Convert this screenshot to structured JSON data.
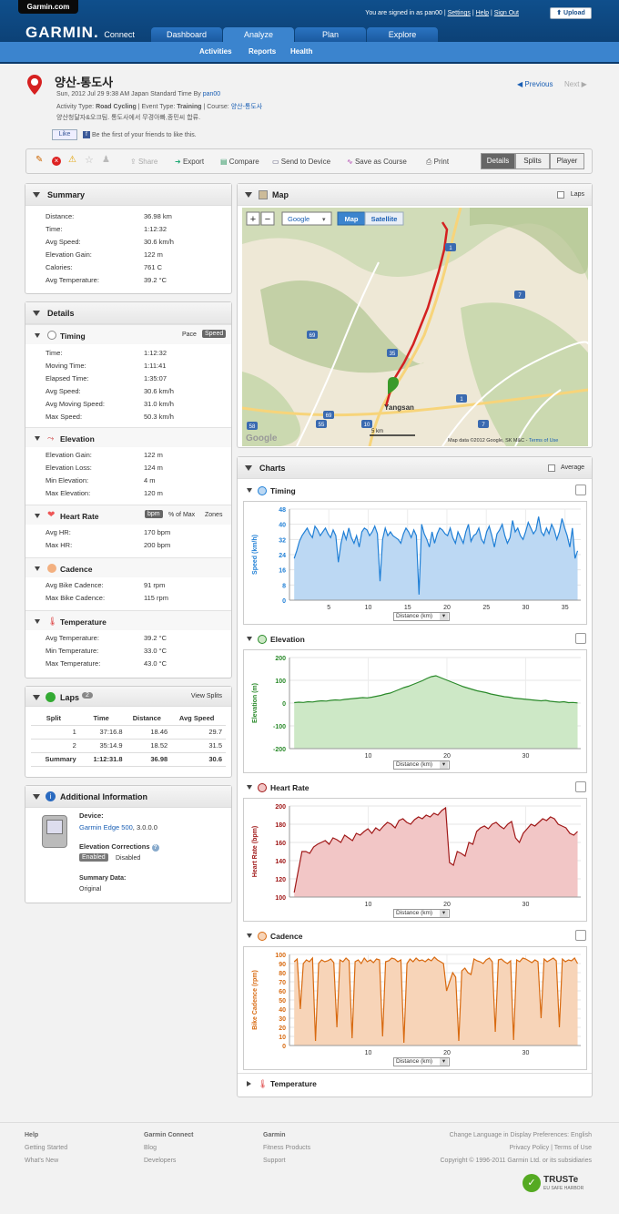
{
  "header": {
    "site_link": "Garmin.com",
    "signed_in": "You are signed in as pan00",
    "links": [
      "Settings",
      "Help",
      "Sign Out"
    ],
    "upload": "Upload",
    "logo": "GARMIN.",
    "logo_sub": "Connect",
    "tabs": [
      "Dashboard",
      "Analyze",
      "Plan",
      "Explore"
    ],
    "active_tab": "Analyze",
    "subnav": [
      "Activities",
      "Reports",
      "Health"
    ]
  },
  "activity": {
    "title": "양산-통도사",
    "line1_prefix": "Sun, 2012 Jul 29 9:38 AM Japan Standard Time By ",
    "line1_user": "pan00",
    "line2_a": "Activity Type: ",
    "line2_type": "Road Cycling",
    "line2_b": " | Event Type: ",
    "line2_event": "Training",
    "line2_c": " | Course: ",
    "line2_course": "양산-통도사",
    "desc": "양산청달자&오크팀. 통도사에서 무경아빠,종민씨 합류.",
    "like": "Like",
    "like_text": "Be the first of your friends to like this.",
    "prev": "Previous",
    "next": "Next"
  },
  "toolbar": {
    "share": "Share",
    "export": "Export",
    "compare": "Compare",
    "send": "Send to Device",
    "save_course": "Save as Course",
    "print": "Print",
    "views": [
      "Details",
      "Splits",
      "Player"
    ],
    "active_view": "Details"
  },
  "summary": {
    "title": "Summary",
    "rows": [
      [
        "Distance:",
        "36.98 km"
      ],
      [
        "Time:",
        "1:12:32"
      ],
      [
        "Avg Speed:",
        "30.6 km/h"
      ],
      [
        "Elevation Gain:",
        "122 m"
      ],
      [
        "Calories:",
        "761 C"
      ],
      [
        "Avg Temperature:",
        "39.2 °C"
      ]
    ]
  },
  "details": {
    "title": "Details",
    "timing": {
      "title": "Timing",
      "pace": "Pace",
      "speed": "Speed",
      "rows": [
        [
          "Time:",
          "1:12:32"
        ],
        [
          "Moving Time:",
          "1:11:41"
        ],
        [
          "Elapsed Time:",
          "1:35:07"
        ],
        [
          "Avg Speed:",
          "30.6 km/h"
        ],
        [
          "Avg Moving Speed:",
          "31.0 km/h"
        ],
        [
          "Max Speed:",
          "50.3 km/h"
        ]
      ]
    },
    "elevation": {
      "title": "Elevation",
      "rows": [
        [
          "Elevation Gain:",
          "122 m"
        ],
        [
          "Elevation Loss:",
          "124 m"
        ],
        [
          "Min Elevation:",
          "4 m"
        ],
        [
          "Max Elevation:",
          "120 m"
        ]
      ]
    },
    "heart": {
      "title": "Heart Rate",
      "bpm": "bpm",
      "pct": "% of Max",
      "zones": "Zones",
      "rows": [
        [
          "Avg HR:",
          "170 bpm"
        ],
        [
          "Max HR:",
          "200 bpm"
        ]
      ]
    },
    "cadence": {
      "title": "Cadence",
      "rows": [
        [
          "Avg Bike Cadence:",
          "91 rpm"
        ],
        [
          "Max Bike Cadence:",
          "115 rpm"
        ]
      ]
    },
    "temperature": {
      "title": "Temperature",
      "rows": [
        [
          "Avg Temperature:",
          "39.2 °C"
        ],
        [
          "Min Temperature:",
          "33.0 °C"
        ],
        [
          "Max Temperature:",
          "43.0 °C"
        ]
      ]
    }
  },
  "laps": {
    "title": "Laps",
    "count": "2",
    "view_splits": "View Splits",
    "headers": [
      "Split",
      "Time",
      "Distance",
      "Avg Speed"
    ],
    "rows": [
      [
        "1",
        "37:16.8",
        "18.46",
        "29.7"
      ],
      [
        "2",
        "35:14.9",
        "18.52",
        "31.5"
      ],
      [
        "Summary",
        "1:12:31.8",
        "36.98",
        "30.6"
      ]
    ]
  },
  "info": {
    "title": "Additional Information",
    "device_label": "Device:",
    "device": "Garmin Edge 500",
    "device_ver": ", 3.0.0.0",
    "elev_corr": "Elevation Corrections",
    "enabled": "Enabled",
    "disabled": "Disabled",
    "summary_label": "Summary Data:",
    "summary_val": "Original"
  },
  "map": {
    "title": "Map",
    "laps": "Laps",
    "google": "Google",
    "map_btn": "Map",
    "sat_btn": "Satellite",
    "city": "Yangsan",
    "credit": "Map data ©2012 Google, SK M&C - ",
    "terms": "Terms of Use",
    "scale": "5 km",
    "road_labels": [
      "1",
      "69",
      "69",
      "35",
      "7",
      "7",
      "1",
      "58",
      "55",
      "10"
    ]
  },
  "charts": {
    "title": "Charts",
    "average": "Average",
    "distance_label": "Distance (km)",
    "temperature": "Temperature"
  },
  "chart_data": [
    {
      "type": "area",
      "name": "Timing",
      "ylabel": "Speed (km/h)",
      "xlabel": "Distance (km)",
      "xlim": [
        0,
        37
      ],
      "ylim": [
        0,
        48
      ],
      "yticks": [
        0,
        8,
        16,
        24,
        32,
        40,
        48
      ],
      "xticks": [
        5,
        10,
        15,
        20,
        25,
        30,
        35
      ],
      "color": "#1f7fd6",
      "fill": "#bcd8f3",
      "y": [
        22,
        26,
        31,
        34,
        36,
        38,
        35,
        33,
        39,
        37,
        34,
        36,
        38,
        35,
        33,
        37,
        34,
        20,
        30,
        36,
        32,
        38,
        33,
        30,
        34,
        28,
        36,
        38,
        37,
        34,
        36,
        39,
        35,
        10,
        32,
        38,
        34,
        36,
        34,
        33,
        32,
        30,
        35,
        38,
        36,
        33,
        37,
        34,
        3,
        40,
        35,
        32,
        28,
        36,
        30,
        35,
        38,
        37,
        35,
        34,
        38,
        33,
        30,
        36,
        33,
        30,
        36,
        40,
        31,
        34,
        35,
        38,
        32,
        30,
        36,
        39,
        34,
        28,
        35,
        37,
        40,
        34,
        30,
        33,
        42,
        36,
        38,
        34,
        32,
        36,
        41,
        38,
        35,
        37,
        44,
        36,
        34,
        38,
        35,
        40,
        37,
        32,
        36,
        43,
        38,
        34,
        28,
        38,
        22,
        26
      ]
    },
    {
      "type": "area",
      "name": "Elevation",
      "ylabel": "Elevation (m)",
      "xlabel": "Distance (km)",
      "xlim": [
        0,
        37
      ],
      "ylim": [
        -200,
        200
      ],
      "yticks": [
        -200,
        -100,
        0,
        100,
        200
      ],
      "xticks": [
        10,
        20,
        30
      ],
      "color": "#2a8a2a",
      "fill": "#cde8c6",
      "y": [
        2,
        4,
        3,
        6,
        5,
        8,
        10,
        9,
        12,
        14,
        13,
        16,
        18,
        20,
        22,
        24,
        23,
        26,
        30,
        34,
        40,
        44,
        52,
        60,
        68,
        74,
        82,
        90,
        98,
        108,
        116,
        120,
        112,
        104,
        96,
        88,
        80,
        72,
        66,
        60,
        54,
        50,
        46,
        40,
        36,
        32,
        28,
        26,
        22,
        20,
        18,
        16,
        14,
        12,
        10,
        12,
        8,
        6,
        4,
        6,
        2,
        3,
        1
      ]
    },
    {
      "type": "area",
      "name": "Heart Rate",
      "ylabel": "Heart Rate (bpm)",
      "xlabel": "Distance (km)",
      "xlim": [
        0,
        37
      ],
      "ylim": [
        100,
        200
      ],
      "yticks": [
        100,
        120,
        140,
        160,
        180,
        200
      ],
      "xticks": [
        10,
        20,
        30
      ],
      "color": "#a01818",
      "fill": "#f2c6c6",
      "y": [
        105,
        128,
        150,
        150,
        148,
        155,
        158,
        160,
        162,
        158,
        165,
        163,
        160,
        168,
        165,
        162,
        170,
        168,
        172,
        175,
        170,
        176,
        173,
        178,
        182,
        180,
        176,
        184,
        186,
        182,
        180,
        185,
        188,
        186,
        190,
        188,
        192,
        190,
        195,
        198,
        138,
        135,
        150,
        148,
        145,
        160,
        158,
        172,
        176,
        178,
        175,
        180,
        182,
        178,
        175,
        180,
        183,
        165,
        160,
        170,
        175,
        180,
        178,
        182,
        186,
        184,
        188,
        186,
        180,
        178,
        176,
        170,
        168,
        172
      ]
    },
    {
      "type": "area",
      "name": "Cadence",
      "ylabel": "Bike Cadence (rpm)",
      "xlabel": "Distance (km)",
      "xlim": [
        0,
        37
      ],
      "ylim": [
        0,
        100
      ],
      "yticks": [
        0,
        10,
        20,
        30,
        40,
        50,
        60,
        70,
        80,
        90,
        100
      ],
      "xticks": [
        10,
        20,
        30
      ],
      "color": "#d86a10",
      "fill": "#f7d4b8",
      "y": [
        92,
        95,
        40,
        90,
        94,
        92,
        96,
        5,
        90,
        94,
        92,
        93,
        95,
        91,
        20,
        94,
        92,
        96,
        93,
        8,
        92,
        94,
        90,
        96,
        92,
        94,
        91,
        95,
        94,
        10,
        92,
        93,
        96,
        95,
        92,
        94,
        3,
        90,
        95,
        92,
        96,
        93,
        94,
        92,
        95,
        93,
        97,
        94,
        92,
        90,
        60,
        70,
        80,
        75,
        5,
        82,
        85,
        80,
        78,
        95,
        93,
        92,
        90,
        94,
        96,
        92,
        15,
        94,
        95,
        92,
        90,
        93,
        6,
        94,
        92,
        96,
        95,
        93,
        91,
        94,
        92,
        30,
        95,
        92,
        94,
        96,
        93,
        20,
        95,
        92,
        94,
        93,
        96,
        90
      ]
    }
  ],
  "footer": {
    "help": "Help",
    "help_links": [
      "Getting Started",
      "What's New"
    ],
    "gc": "Garmin Connect",
    "gc_links": [
      "Blog",
      "Developers"
    ],
    "garmin": "Garmin",
    "garmin_links": [
      "Fitness Products",
      "Support"
    ],
    "lang": "Change Language in Display Preferences: English",
    "privacy": "Privacy Policy | Terms of Use",
    "copyright": "Copyright © 1996-2011 Garmin Ltd. or its subsidiaries",
    "truste": "TRUSTe",
    "truste_sub": "EU SAFE HARBOR"
  },
  "colors": {
    "header": "#0f4f8c",
    "subnav": "#3b84ce",
    "route": "#d42020"
  }
}
